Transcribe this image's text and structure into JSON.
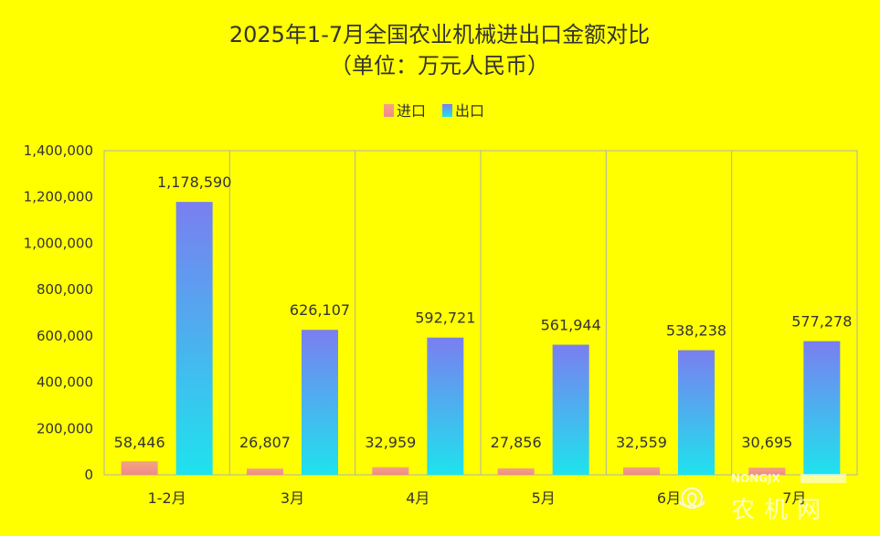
{
  "chart_data": {
    "type": "bar",
    "title_lines": [
      "2025年1-7月全国农业机械进出口金额对比",
      "（单位：万元人民币）"
    ],
    "categories": [
      "1-2月",
      "3月",
      "4月",
      "5月",
      "6月",
      "7月"
    ],
    "series": [
      {
        "name": "进口",
        "values": [
          58446,
          26807,
          32959,
          27856,
          32559,
          30695
        ],
        "value_labels": [
          "58,446",
          "26,807",
          "32,959",
          "27,856",
          "32,559",
          "30,695"
        ],
        "gradient": [
          "#f4a380",
          "#f08a8a"
        ]
      },
      {
        "name": "出口",
        "values": [
          1178590,
          626107,
          592721,
          561944,
          538238,
          577278
        ],
        "value_labels": [
          "1,178,590",
          "626,107",
          "592,721",
          "561,944",
          "538,238",
          "577,278"
        ],
        "gradient": [
          "#7a7ef0",
          "#1ee3ee"
        ]
      }
    ],
    "ylim": [
      0,
      1400000
    ],
    "yticks": [
      0,
      200000,
      400000,
      600000,
      800000,
      1000000,
      1200000,
      1400000
    ],
    "ytick_labels": [
      "0",
      "200,000",
      "400,000",
      "600,000",
      "800,000",
      "1,000,000",
      "1,200,000",
      "1,400,000"
    ],
    "legend_position": "top-center",
    "grid": "vertical category separators"
  },
  "watermark": {
    "brand_latin": "NONGJX",
    "brand_cn": "农机网"
  },
  "colors": {
    "background": "#ffff00",
    "axis": "#b0b0b0",
    "text": "#333333"
  }
}
